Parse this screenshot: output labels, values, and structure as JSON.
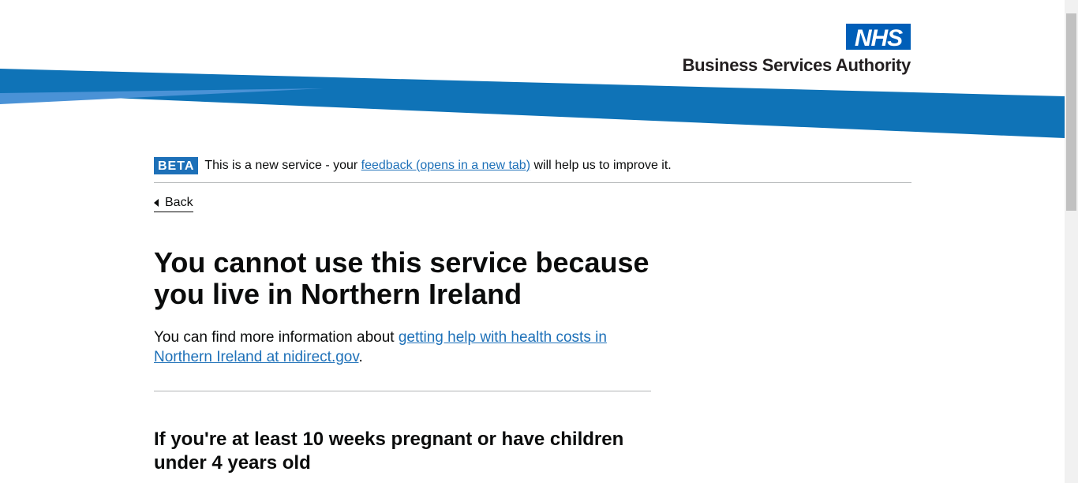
{
  "header": {
    "logo_text": "NHS",
    "org_name": "Business Services Authority",
    "colors": {
      "nhs_blue": "#005eb8",
      "swoosh_dark": "#0f73b7",
      "swoosh_light": "#3a8fd0"
    }
  },
  "phase_banner": {
    "tag": "BETA",
    "text_before": "This is a new service - your ",
    "link_text": "feedback (opens in a new tab)",
    "text_after": " will help us to improve it."
  },
  "back_link": {
    "label": "Back"
  },
  "main": {
    "heading": "You cannot use this service because you live in Northern Ireland",
    "lead_before": "You can find more information about ",
    "lead_link": "getting help with health costs in Northern Ireland at nidirect.gov",
    "lead_after": ".",
    "subheading": "If you're at least 10 weeks pregnant or have children under 4 years old"
  }
}
